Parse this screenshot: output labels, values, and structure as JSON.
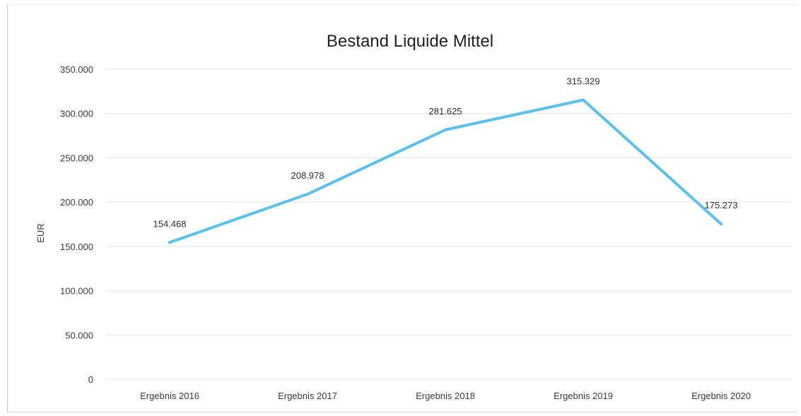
{
  "chart_data": {
    "type": "line",
    "title": "Bestand Liquide Mittel",
    "ylabel": "EUR",
    "xlabel": "",
    "categories": [
      "Ergebnis 2016",
      "Ergebnis 2017",
      "Ergebnis 2018",
      "Ergebnis 2019",
      "Ergebnis 2020"
    ],
    "series": [
      {
        "values": [
          154468,
          208978,
          281625,
          315329,
          175273
        ],
        "labels": [
          "154.468",
          "208.978",
          "281.625",
          "315.329",
          "175.273"
        ],
        "color": "#5bc0eb"
      }
    ],
    "yticks": [
      0,
      50000,
      100000,
      150000,
      200000,
      250000,
      300000,
      350000
    ],
    "ytick_labels": [
      "0",
      "50.000",
      "100.000",
      "150.000",
      "200.000",
      "250.000",
      "300.000",
      "350.000"
    ],
    "ylim": [
      0,
      350000
    ],
    "grid": true,
    "legend": "none"
  }
}
